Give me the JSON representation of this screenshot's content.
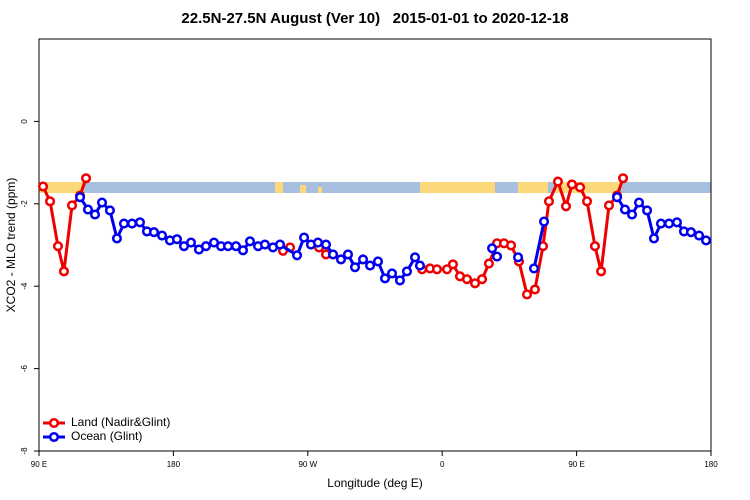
{
  "chart_data": {
    "type": "line",
    "title": "22.5N-27.5N August (Ver 10)   2015-01-01 to 2020-12-18",
    "x_label": "Longitude (deg E)",
    "y_label": "XCO2 - MLO trend (ppm)",
    "xlim": [
      90,
      540
    ],
    "ylim": [
      -8,
      2
    ],
    "xticks": [
      {
        "value": 90,
        "label": "90 E"
      },
      {
        "value": 180,
        "label": "180"
      },
      {
        "value": 270,
        "label": "90 W"
      },
      {
        "value": 360,
        "label": "0"
      },
      {
        "value": 450,
        "label": "90 E"
      },
      {
        "value": 540,
        "label": "180"
      }
    ],
    "yticks": [
      0,
      -2,
      -4,
      -6,
      -8
    ],
    "legend": "bottom-left",
    "series": [
      {
        "name": "Land (Nadir&Glint)",
        "color": "#ee0000",
        "x": [
          92.7,
          97.4,
          102.7,
          106.7,
          112.1,
          117.5,
          121.5,
          null,
          253.4,
          258.1,
          null,
          277.5,
          282.2,
          null,
          346.5,
          351.8,
          356.5,
          363.2,
          367.2,
          371.9,
          376.6,
          382.0,
          386.7,
          391.3,
          396.7,
          401.4,
          406.1,
          411.4,
          416.8,
          422.1,
          427.5,
          431.5,
          437.5,
          442.9,
          446.9,
          452.3,
          457.0,
          462.3,
          466.4,
          471.7,
          477.1,
          481.1
        ],
        "values": [
          -1.58,
          -1.94,
          -3.03,
          -3.64,
          -2.04,
          -1.8,
          -1.38,
          null,
          -3.14,
          -3.06,
          null,
          -3.06,
          -3.23,
          null,
          -3.59,
          -3.57,
          -3.59,
          -3.59,
          -3.47,
          -3.76,
          -3.83,
          -3.93,
          -3.83,
          -3.45,
          -2.96,
          -2.96,
          -3.01,
          -3.4,
          -4.2,
          -4.08,
          -3.03,
          -1.94,
          -1.46,
          -2.06,
          -1.53,
          -1.6,
          -1.94,
          -3.03,
          -3.64,
          -2.04,
          -1.8,
          -1.38
        ]
      },
      {
        "name": "Ocean (Glint)",
        "color": "#0000ee",
        "x": [
          117.5,
          122.8,
          127.5,
          132.2,
          137.5,
          142.2,
          146.9,
          152.3,
          157.6,
          162.3,
          167.0,
          172.4,
          177.7,
          182.4,
          187.1,
          191.8,
          197.1,
          201.8,
          207.2,
          211.9,
          216.6,
          221.9,
          226.6,
          231.3,
          236.7,
          241.3,
          246.7,
          251.4,
          262.8,
          267.5,
          272.1,
          276.8,
          282.2,
          286.9,
          292.2,
          296.9,
          301.6,
          307.0,
          311.7,
          317.0,
          321.7,
          326.4,
          331.7,
          336.4,
          341.8,
          345.1,
          null,
          393.4,
          396.7,
          null,
          410.8,
          null,
          421.5,
          428.2,
          null,
          477.1,
          482.4,
          487.1,
          491.8,
          497.2,
          501.8,
          506.5,
          511.9,
          517.2,
          521.9,
          526.6,
          532.0,
          536.7
        ],
        "values": [
          -1.84,
          -2.14,
          -2.26,
          -1.97,
          -2.16,
          -2.84,
          -2.48,
          -2.48,
          -2.45,
          -2.67,
          -2.69,
          -2.77,
          -2.89,
          -2.86,
          -3.03,
          -2.94,
          -3.11,
          -3.03,
          -2.94,
          -3.03,
          -3.03,
          -3.03,
          -3.13,
          -2.91,
          -3.03,
          -2.99,
          -3.06,
          -2.99,
          -3.25,
          -2.82,
          -2.99,
          -2.94,
          -2.99,
          -3.23,
          -3.35,
          -3.23,
          -3.54,
          -3.35,
          -3.5,
          -3.4,
          -3.81,
          -3.69,
          -3.86,
          -3.64,
          -3.3,
          -3.5,
          null,
          -3.08,
          -3.28,
          null,
          -3.3,
          null,
          -3.57,
          -2.43,
          null,
          -1.84,
          -2.14,
          -2.26,
          -1.97,
          -2.16,
          -2.84,
          -2.48,
          -2.48,
          -2.45,
          -2.67,
          -2.69,
          -2.77,
          -2.89
        ]
      }
    ]
  }
}
